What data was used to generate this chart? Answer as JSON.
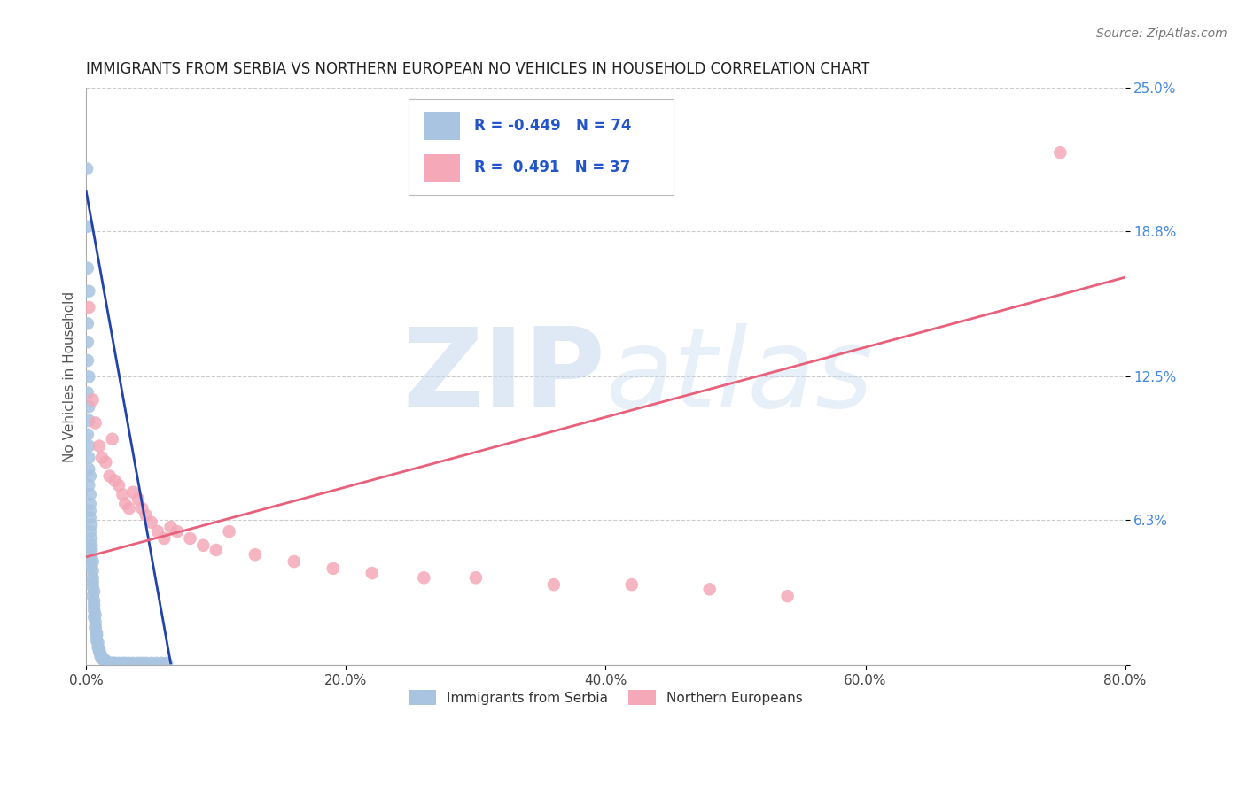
{
  "title": "IMMIGRANTS FROM SERBIA VS NORTHERN EUROPEAN NO VEHICLES IN HOUSEHOLD CORRELATION CHART",
  "source": "Source: ZipAtlas.com",
  "ylabel": "No Vehicles in Household",
  "xmin": 0.0,
  "xmax": 0.8,
  "ymin": 0.0,
  "ymax": 0.25,
  "blue_R": -0.449,
  "blue_N": 74,
  "pink_R": 0.491,
  "pink_N": 37,
  "blue_color": "#A8C4E0",
  "pink_color": "#F4A8B8",
  "blue_line_color": "#2244AA",
  "pink_line_color": "#E8607A",
  "blue_scatter": [
    [
      0.0005,
      0.215
    ],
    [
      0.001,
      0.19
    ],
    [
      0.001,
      0.172
    ],
    [
      0.002,
      0.162
    ],
    [
      0.001,
      0.148
    ],
    [
      0.001,
      0.14
    ],
    [
      0.001,
      0.132
    ],
    [
      0.002,
      0.125
    ],
    [
      0.001,
      0.118
    ],
    [
      0.002,
      0.112
    ],
    [
      0.002,
      0.106
    ],
    [
      0.001,
      0.1
    ],
    [
      0.002,
      0.095
    ],
    [
      0.002,
      0.09
    ],
    [
      0.002,
      0.085
    ],
    [
      0.003,
      0.082
    ],
    [
      0.002,
      0.078
    ],
    [
      0.003,
      0.074
    ],
    [
      0.003,
      0.07
    ],
    [
      0.003,
      0.067
    ],
    [
      0.003,
      0.064
    ],
    [
      0.004,
      0.061
    ],
    [
      0.003,
      0.058
    ],
    [
      0.004,
      0.055
    ],
    [
      0.004,
      0.052
    ],
    [
      0.004,
      0.05
    ],
    [
      0.004,
      0.047
    ],
    [
      0.005,
      0.045
    ],
    [
      0.004,
      0.043
    ],
    [
      0.005,
      0.041
    ],
    [
      0.005,
      0.038
    ],
    [
      0.005,
      0.036
    ],
    [
      0.005,
      0.034
    ],
    [
      0.006,
      0.032
    ],
    [
      0.005,
      0.03
    ],
    [
      0.006,
      0.028
    ],
    [
      0.006,
      0.026
    ],
    [
      0.006,
      0.024
    ],
    [
      0.007,
      0.022
    ],
    [
      0.006,
      0.021
    ],
    [
      0.007,
      0.019
    ],
    [
      0.007,
      0.017
    ],
    [
      0.007,
      0.016
    ],
    [
      0.008,
      0.014
    ],
    [
      0.008,
      0.013
    ],
    [
      0.008,
      0.011
    ],
    [
      0.009,
      0.01
    ],
    [
      0.009,
      0.008
    ],
    [
      0.01,
      0.007
    ],
    [
      0.01,
      0.006
    ],
    [
      0.011,
      0.005
    ],
    [
      0.011,
      0.004
    ],
    [
      0.012,
      0.003
    ],
    [
      0.013,
      0.003
    ],
    [
      0.014,
      0.002
    ],
    [
      0.015,
      0.002
    ],
    [
      0.016,
      0.001
    ],
    [
      0.017,
      0.001
    ],
    [
      0.018,
      0.001
    ],
    [
      0.02,
      0.001
    ],
    [
      0.021,
      0.001
    ],
    [
      0.022,
      0.001
    ],
    [
      0.025,
      0.001
    ],
    [
      0.028,
      0.001
    ],
    [
      0.03,
      0.001
    ],
    [
      0.033,
      0.001
    ],
    [
      0.036,
      0.001
    ],
    [
      0.04,
      0.001
    ],
    [
      0.043,
      0.001
    ],
    [
      0.046,
      0.001
    ],
    [
      0.05,
      0.001
    ],
    [
      0.054,
      0.001
    ],
    [
      0.058,
      0.001
    ],
    [
      0.062,
      0.001
    ]
  ],
  "pink_scatter": [
    [
      0.002,
      0.155
    ],
    [
      0.005,
      0.115
    ],
    [
      0.007,
      0.105
    ],
    [
      0.01,
      0.095
    ],
    [
      0.012,
      0.09
    ],
    [
      0.015,
      0.088
    ],
    [
      0.018,
      0.082
    ],
    [
      0.02,
      0.098
    ],
    [
      0.022,
      0.08
    ],
    [
      0.025,
      0.078
    ],
    [
      0.028,
      0.074
    ],
    [
      0.03,
      0.07
    ],
    [
      0.033,
      0.068
    ],
    [
      0.036,
      0.075
    ],
    [
      0.04,
      0.072
    ],
    [
      0.043,
      0.068
    ],
    [
      0.046,
      0.065
    ],
    [
      0.05,
      0.062
    ],
    [
      0.055,
      0.058
    ],
    [
      0.06,
      0.055
    ],
    [
      0.065,
      0.06
    ],
    [
      0.07,
      0.058
    ],
    [
      0.08,
      0.055
    ],
    [
      0.09,
      0.052
    ],
    [
      0.1,
      0.05
    ],
    [
      0.11,
      0.058
    ],
    [
      0.13,
      0.048
    ],
    [
      0.16,
      0.045
    ],
    [
      0.19,
      0.042
    ],
    [
      0.22,
      0.04
    ],
    [
      0.26,
      0.038
    ],
    [
      0.3,
      0.038
    ],
    [
      0.36,
      0.035
    ],
    [
      0.42,
      0.035
    ],
    [
      0.48,
      0.033
    ],
    [
      0.75,
      0.222
    ],
    [
      0.54,
      0.03
    ]
  ],
  "blue_line_x": [
    0.0,
    0.065
  ],
  "blue_line_y": [
    0.205,
    0.001
  ],
  "pink_line_x": [
    0.0,
    0.8
  ],
  "pink_line_y": [
    0.047,
    0.168
  ],
  "watermark_zip": "ZIP",
  "watermark_atlas": "atlas",
  "background_color": "#FFFFFF",
  "grid_color": "#CCCCCC",
  "ytick_labels": [
    "",
    "6.3%",
    "12.5%",
    "18.8%",
    "25.0%"
  ],
  "ytick_vals": [
    0.0,
    0.063,
    0.125,
    0.188,
    0.25
  ],
  "xtick_vals": [
    0.0,
    0.2,
    0.4,
    0.6,
    0.8
  ],
  "xtick_labels": [
    "0.0%",
    "20.0%",
    "40.0%",
    "60.0%",
    "80.0%"
  ]
}
